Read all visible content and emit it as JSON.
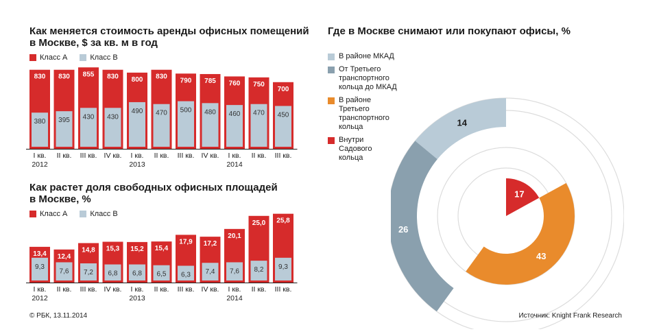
{
  "left_top": {
    "title": "Как меняется стоимость аренды офисных помещений\nв Москве, $ за кв. м в год",
    "legend": [
      "Класс А",
      "Класс B"
    ]
  },
  "left_bottom": {
    "title": "Как растет доля свободных офисных площадей\nв Москве, %",
    "legend": [
      "Класс А",
      "Класс B"
    ]
  },
  "right": {
    "title": "Где в Москве снимают или покупают офисы, %",
    "legend": [
      "В районе МКАД",
      "От Третьего\nтранспортного\nкольца до МКАД",
      "В районе\nТретьего\nтранспортного\nкольца",
      "Внутри\nСадового\nкольца"
    ]
  },
  "footer": {
    "left": "© РБК, 13.11.2014",
    "right": "Источник: Knight Frank Research"
  },
  "colors": {
    "classA": "#d62b2b",
    "classB": "#b9cbd7",
    "mkad": "#b9cbd7",
    "ttk_mkad": "#8aa0ae",
    "ttk": "#e98b2c",
    "garden": "#d62b2b"
  },
  "chart_data": [
    {
      "type": "bar",
      "title": "Как меняется стоимость аренды офисных помещений в Москве, $ за кв. м в год",
      "categories": [
        "I кв.\n2012",
        "II кв.",
        "III кв.",
        "IV кв.",
        "I кв.\n2013",
        "II кв.",
        "III кв.",
        "IV кв.",
        "I кв.\n2014",
        "II кв.",
        "III кв."
      ],
      "series": [
        {
          "name": "Класс А",
          "values": [
            830,
            830,
            855,
            830,
            800,
            830,
            790,
            785,
            760,
            750,
            700
          ]
        },
        {
          "name": "Класс B",
          "values": [
            380,
            395,
            430,
            430,
            490,
            470,
            500,
            480,
            460,
            470,
            450
          ]
        }
      ],
      "ylim": [
        0,
        900
      ]
    },
    {
      "type": "bar",
      "title": "Как растет доля свободных офисных площадей в Москве, %",
      "categories": [
        "I кв.\n2012",
        "II кв.",
        "III кв.",
        "IV кв.",
        "I кв.\n2013",
        "II кв.",
        "III кв.",
        "IV кв.",
        "I кв.\n2014",
        "II кв.",
        "III кв."
      ],
      "series": [
        {
          "name": "Класс А",
          "values": [
            13.4,
            12.4,
            14.8,
            15.3,
            15.2,
            15.4,
            17.9,
            17.2,
            20.1,
            25.0,
            25.8
          ]
        },
        {
          "name": "Класс B",
          "values": [
            9.3,
            7.6,
            7.2,
            6.8,
            6.8,
            6.5,
            6.3,
            7.4,
            7.6,
            8.2,
            9.3
          ]
        }
      ],
      "labels_a": [
        "13,4",
        "12,4",
        "14,8",
        "15,3",
        "15,2",
        "15,4",
        "17,9",
        "17,2",
        "20,1",
        "25,0",
        "25,8"
      ],
      "labels_b": [
        "9,3",
        "7,6",
        "7,2",
        "6,8",
        "6,8",
        "6,5",
        "6,3",
        "7,4",
        "7,6",
        "8,2",
        "9,3"
      ],
      "ylim": [
        0,
        27
      ]
    },
    {
      "type": "pie",
      "title": "Где в Москве снимают или покупают офисы, %",
      "categories": [
        "В районе МКАД",
        "От Третьего транспортного кольца до МКАД",
        "В районе Третьего транспортного кольца",
        "Внутри Садового кольца"
      ],
      "values": [
        14,
        26,
        43,
        17
      ]
    }
  ]
}
